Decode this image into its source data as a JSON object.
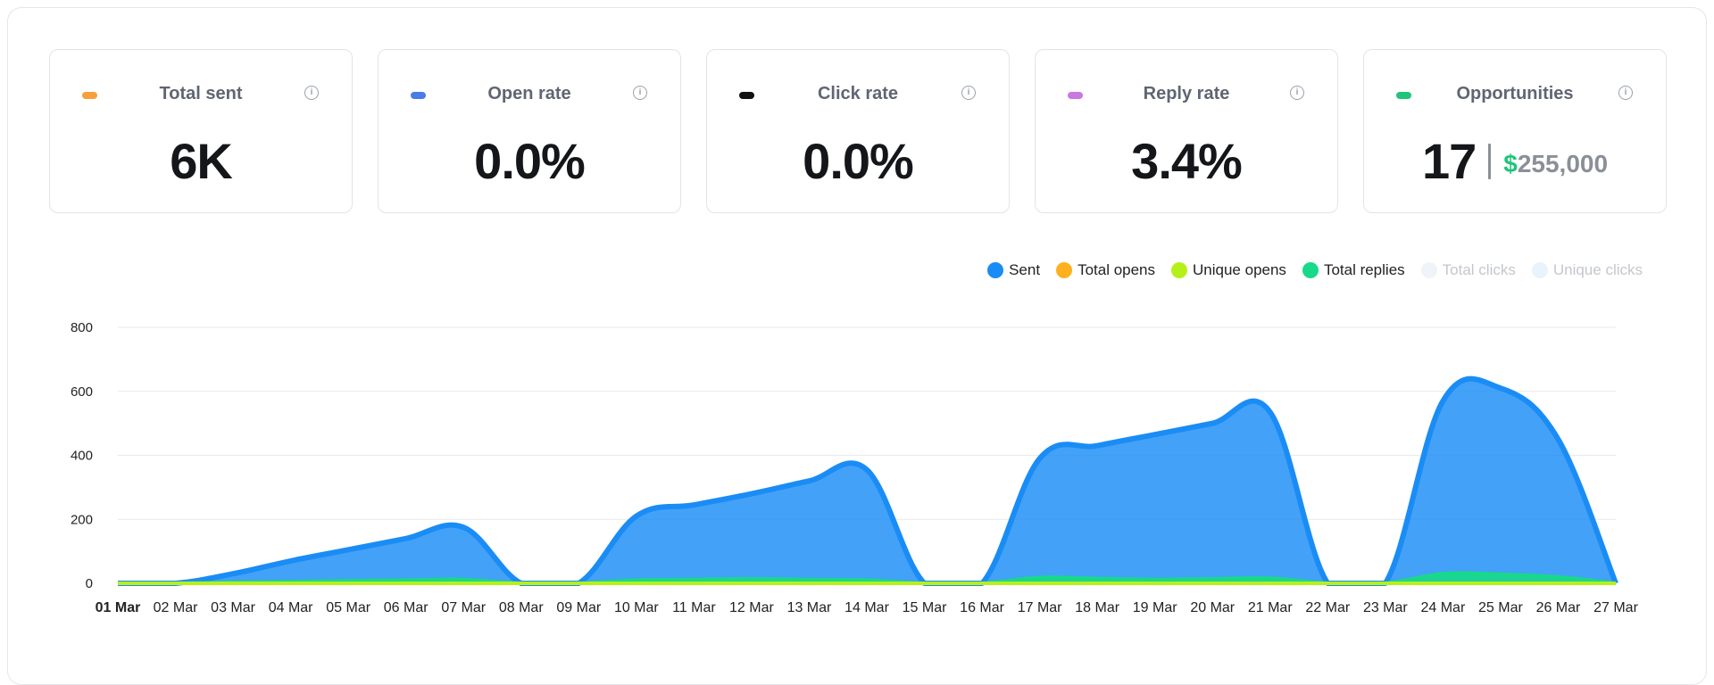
{
  "metrics": [
    {
      "label": "Total sent",
      "value": "6K",
      "color": "#f5a03c"
    },
    {
      "label": "Open rate",
      "value": "0.0%",
      "color": "#4a7ce8"
    },
    {
      "label": "Click rate",
      "value": "0.0%",
      "color": "#111111"
    },
    {
      "label": "Reply rate",
      "value": "3.4%",
      "color": "#c878e0"
    },
    {
      "label": "Opportunities",
      "value": "17",
      "currency_symbol": "$",
      "amount": "255,000",
      "color": "#22c47a"
    }
  ],
  "info_glyph": "i",
  "legend": [
    {
      "label": "Sent",
      "color": "#1a8cf5",
      "active": true
    },
    {
      "label": "Total opens",
      "color": "#ffb020",
      "active": true
    },
    {
      "label": "Unique opens",
      "color": "#b6f01a",
      "active": true
    },
    {
      "label": "Total replies",
      "color": "#18d98a",
      "active": true
    },
    {
      "label": "Total clicks",
      "color": "#eef4fa",
      "active": false
    },
    {
      "label": "Unique clicks",
      "color": "#e8f3fb",
      "active": false
    }
  ],
  "chart_data": {
    "type": "area",
    "categories": [
      "01 Mar",
      "02 Mar",
      "03 Mar",
      "04 Mar",
      "05 Mar",
      "06 Mar",
      "07 Mar",
      "08 Mar",
      "09 Mar",
      "10 Mar",
      "11 Mar",
      "12 Mar",
      "13 Mar",
      "14 Mar",
      "15 Mar",
      "16 Mar",
      "17 Mar",
      "18 Mar",
      "19 Mar",
      "20 Mar",
      "21 Mar",
      "22 Mar",
      "23 Mar",
      "24 Mar",
      "25 Mar",
      "26 Mar",
      "27 Mar"
    ],
    "highlighted_category": "01 Mar",
    "yticks": [
      0,
      200,
      400,
      600,
      800
    ],
    "ylim": [
      0,
      800
    ],
    "grid": true,
    "series": [
      {
        "name": "Sent",
        "color": "#1a8cf5",
        "values": [
          0,
          0,
          30,
          70,
          105,
          140,
          175,
          0,
          0,
          210,
          245,
          280,
          320,
          355,
          0,
          0,
          390,
          430,
          465,
          500,
          535,
          0,
          0,
          570,
          610,
          450,
          0
        ]
      },
      {
        "name": "Total replies",
        "color": "#18d98a",
        "values": [
          0,
          0,
          3,
          5,
          8,
          10,
          12,
          0,
          0,
          10,
          12,
          14,
          12,
          10,
          0,
          0,
          18,
          15,
          12,
          14,
          16,
          0,
          0,
          30,
          28,
          20,
          0
        ]
      },
      {
        "name": "Total opens",
        "color": "#ffb020",
        "values": [
          0,
          0,
          0,
          0,
          0,
          0,
          0,
          0,
          0,
          0,
          0,
          0,
          0,
          0,
          0,
          0,
          0,
          0,
          0,
          0,
          0,
          0,
          0,
          0,
          0,
          0,
          0
        ]
      },
      {
        "name": "Unique opens",
        "color": "#b6f01a",
        "values": [
          0,
          0,
          0,
          0,
          0,
          0,
          0,
          0,
          0,
          0,
          0,
          0,
          0,
          0,
          0,
          0,
          0,
          0,
          0,
          0,
          0,
          0,
          0,
          0,
          0,
          0,
          0
        ]
      }
    ]
  }
}
